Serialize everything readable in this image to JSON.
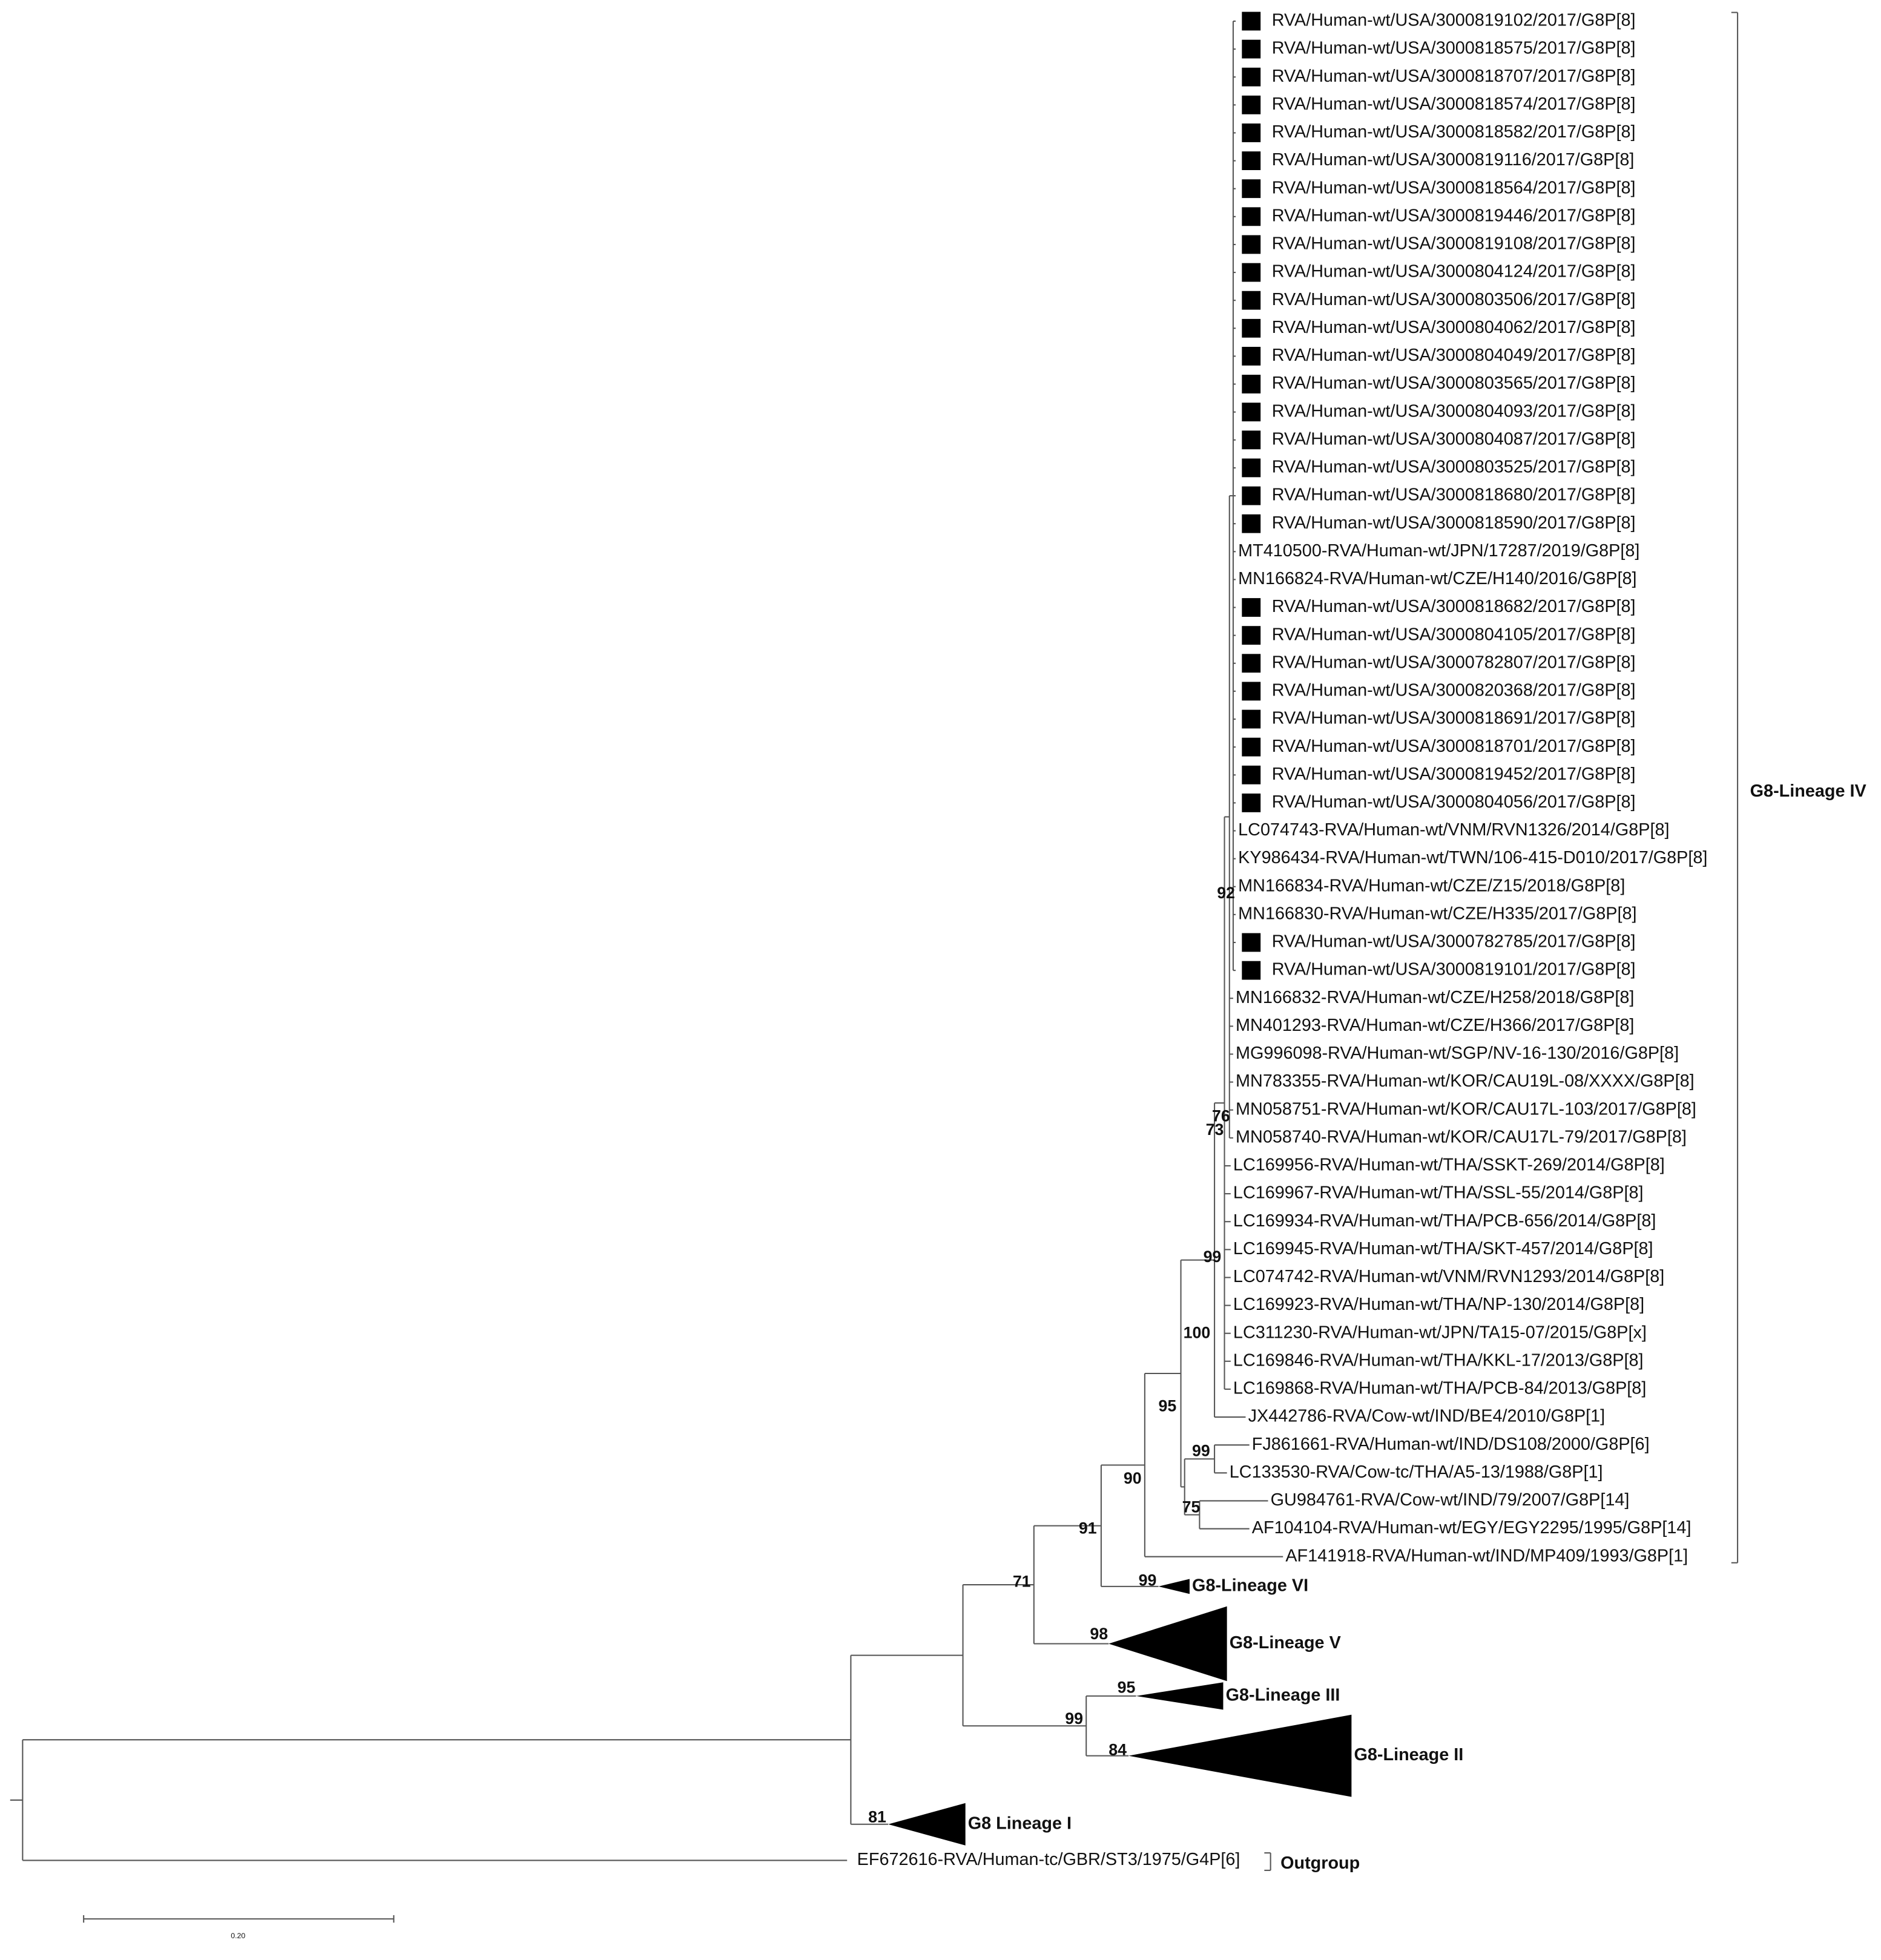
{
  "leaves": [
    {
      "label": "RVA/Human-wt/USA/3000819102/2017/G8P[8]",
      "marked": true
    },
    {
      "label": "RVA/Human-wt/USA/3000818575/2017/G8P[8]",
      "marked": true
    },
    {
      "label": "RVA/Human-wt/USA/3000818707/2017/G8P[8]",
      "marked": true
    },
    {
      "label": "RVA/Human-wt/USA/3000818574/2017/G8P[8]",
      "marked": true
    },
    {
      "label": "RVA/Human-wt/USA/3000818582/2017/G8P[8]",
      "marked": true
    },
    {
      "label": "RVA/Human-wt/USA/3000819116/2017/G8P[8]",
      "marked": true
    },
    {
      "label": "RVA/Human-wt/USA/3000818564/2017/G8P[8]",
      "marked": true
    },
    {
      "label": "RVA/Human-wt/USA/3000819446/2017/G8P[8]",
      "marked": true
    },
    {
      "label": "RVA/Human-wt/USA/3000819108/2017/G8P[8]",
      "marked": true
    },
    {
      "label": "RVA/Human-wt/USA/3000804124/2017/G8P[8]",
      "marked": true
    },
    {
      "label": "RVA/Human-wt/USA/3000803506/2017/G8P[8]",
      "marked": true
    },
    {
      "label": "RVA/Human-wt/USA/3000804062/2017/G8P[8]",
      "marked": true
    },
    {
      "label": "RVA/Human-wt/USA/3000804049/2017/G8P[8]",
      "marked": true
    },
    {
      "label": "RVA/Human-wt/USA/3000803565/2017/G8P[8]",
      "marked": true
    },
    {
      "label": "RVA/Human-wt/USA/3000804093/2017/G8P[8]",
      "marked": true
    },
    {
      "label": "RVA/Human-wt/USA/3000804087/2017/G8P[8]",
      "marked": true
    },
    {
      "label": "RVA/Human-wt/USA/3000803525/2017/G8P[8]",
      "marked": true
    },
    {
      "label": "RVA/Human-wt/USA/3000818680/2017/G8P[8]",
      "marked": true
    },
    {
      "label": "RVA/Human-wt/USA/3000818590/2017/G8P[8]",
      "marked": true
    },
    {
      "label": "MT410500-RVA/Human-wt/JPN/17287/2019/G8P[8]",
      "marked": false
    },
    {
      "label": "MN166824-RVA/Human-wt/CZE/H140/2016/G8P[8]",
      "marked": false
    },
    {
      "label": "RVA/Human-wt/USA/3000818682/2017/G8P[8]",
      "marked": true
    },
    {
      "label": "RVA/Human-wt/USA/3000804105/2017/G8P[8]",
      "marked": true
    },
    {
      "label": "RVA/Human-wt/USA/3000782807/2017/G8P[8]",
      "marked": true
    },
    {
      "label": "RVA/Human-wt/USA/3000820368/2017/G8P[8]",
      "marked": true
    },
    {
      "label": "RVA/Human-wt/USA/3000818691/2017/G8P[8]",
      "marked": true
    },
    {
      "label": "RVA/Human-wt/USA/3000818701/2017/G8P[8]",
      "marked": true
    },
    {
      "label": "RVA/Human-wt/USA/3000819452/2017/G8P[8]",
      "marked": true
    },
    {
      "label": "RVA/Human-wt/USA/3000804056/2017/G8P[8]",
      "marked": true
    },
    {
      "label": "LC074743-RVA/Human-wt/VNM/RVN1326/2014/G8P[8]",
      "marked": false
    },
    {
      "label": "KY986434-RVA/Human-wt/TWN/106-415-D010/2017/G8P[8]",
      "marked": false
    },
    {
      "label": "MN166834-RVA/Human-wt/CZE/Z15/2018/G8P[8]",
      "marked": false
    },
    {
      "label": "MN166830-RVA/Human-wt/CZE/H335/2017/G8P[8]",
      "marked": false
    },
    {
      "label": "RVA/Human-wt/USA/3000782785/2017/G8P[8]",
      "marked": true
    },
    {
      "label": "RVA/Human-wt/USA/3000819101/2017/G8P[8]",
      "marked": true
    },
    {
      "label": "MN166832-RVA/Human-wt/CZE/H258/2018/G8P[8]",
      "marked": false
    },
    {
      "label": "MN401293-RVA/Human-wt/CZE/H366/2017/G8P[8]",
      "marked": false
    },
    {
      "label": "MG996098-RVA/Human-wt/SGP/NV-16-130/2016/G8P[8]",
      "marked": false
    },
    {
      "label": "MN783355-RVA/Human-wt/KOR/CAU19L-08/XXXX/G8P[8]",
      "marked": false
    },
    {
      "label": "MN058751-RVA/Human-wt/KOR/CAU17L-103/2017/G8P[8]",
      "marked": false
    },
    {
      "label": "MN058740-RVA/Human-wt/KOR/CAU17L-79/2017/G8P[8]",
      "marked": false
    },
    {
      "label": "LC169956-RVA/Human-wt/THA/SSKT-269/2014/G8P[8]",
      "marked": false
    },
    {
      "label": "LC169967-RVA/Human-wt/THA/SSL-55/2014/G8P[8]",
      "marked": false
    },
    {
      "label": "LC169934-RVA/Human-wt/THA/PCB-656/2014/G8P[8]",
      "marked": false
    },
    {
      "label": "LC169945-RVA/Human-wt/THA/SKT-457/2014/G8P[8]",
      "marked": false
    },
    {
      "label": "LC074742-RVA/Human-wt/VNM/RVN1293/2014/G8P[8]",
      "marked": false
    },
    {
      "label": "LC169923-RVA/Human-wt/THA/NP-130/2014/G8P[8]",
      "marked": false
    },
    {
      "label": "LC311230-RVA/Human-wt/JPN/TA15-07/2015/G8P[x]",
      "marked": false
    },
    {
      "label": "LC169846-RVA/Human-wt/THA/KKL-17/2013/G8P[8]",
      "marked": false
    },
    {
      "label": "LC169868-RVA/Human-wt/THA/PCB-84/2013/G8P[8]",
      "marked": false
    },
    {
      "label": "JX442786-RVA/Cow-wt/IND/BE4/2010/G8P[1]",
      "marked": false
    },
    {
      "label": "FJ861661-RVA/Human-wt/IND/DS108/2000/G8P[6]",
      "marked": false
    },
    {
      "label": "LC133530-RVA/Cow-tc/THA/A5-13/1988/G8P[1]",
      "marked": false
    },
    {
      "label": "GU984761-RVA/Cow-wt/IND/79/2007/G8P[14]",
      "marked": false
    },
    {
      "label": "AF104104-RVA/Human-wt/EGY/EGY2295/1995/G8P[14]",
      "marked": false
    },
    {
      "label": "AF141918-RVA/Human-wt/IND/MP409/1993/G8P[1]",
      "marked": false
    }
  ],
  "outgroup": "EF672616-RVA/Human-tc/GBR/ST3/1975/G4P[6]",
  "support": [
    92,
    76,
    73,
    99,
    100,
    95,
    99,
    90,
    75,
    91,
    71,
    99,
    98,
    95,
    99,
    84,
    81
  ],
  "collapsed_clades": [
    "G8-Lineage VI",
    "G8-Lineage V",
    "G8-Lineage III",
    "G8-Lineage II",
    "G8 Lineage I"
  ],
  "bracket_labels": {
    "lineage_iv": "G8-Lineage IV",
    "outgroup": "Outgroup"
  },
  "scale_bar": "0.20"
}
